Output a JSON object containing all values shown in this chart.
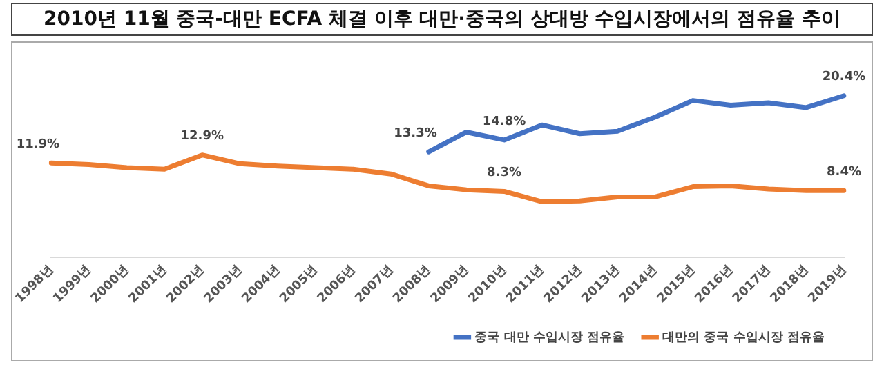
{
  "chart_data": {
    "type": "line",
    "title": "2010년 11월 중국-대만 ECFA 체결 이후 대만·중국의 상대방 수입시장에서의 점유율 추이",
    "categories": [
      "1998년",
      "1999년",
      "2000년",
      "2001년",
      "2002년",
      "2003년",
      "2004년",
      "2005년",
      "2006년",
      "2007년",
      "2008년",
      "2009년",
      "2010년",
      "2011년",
      "2012년",
      "2013년",
      "2014년",
      "2015년",
      "2016년",
      "2017년",
      "2018년",
      "2019년"
    ],
    "series": [
      {
        "name": "중국 대만 수입시장 점유율",
        "color": "#4472c4",
        "values": [
          null,
          null,
          null,
          null,
          null,
          null,
          null,
          null,
          null,
          null,
          13.3,
          15.8,
          14.8,
          16.7,
          15.6,
          15.9,
          17.7,
          19.8,
          19.2,
          19.5,
          18.9,
          20.4
        ],
        "value_labels": [
          null,
          null,
          null,
          null,
          null,
          null,
          null,
          null,
          null,
          null,
          "13.3%",
          null,
          "14.8%",
          null,
          null,
          null,
          null,
          null,
          null,
          null,
          null,
          "20.4%"
        ]
      },
      {
        "name": "대만의 중국 수입시장 점유율",
        "color": "#ed7d31",
        "values": [
          11.9,
          11.7,
          11.3,
          11.1,
          12.9,
          11.8,
          11.5,
          11.3,
          11.1,
          10.5,
          9.0,
          8.5,
          8.3,
          7.0,
          7.1,
          7.6,
          7.6,
          8.9,
          9.0,
          8.6,
          8.4,
          8.4
        ],
        "value_labels": [
          "11.9%",
          null,
          null,
          null,
          "12.9%",
          null,
          null,
          null,
          null,
          null,
          null,
          null,
          "8.3%",
          null,
          null,
          null,
          null,
          null,
          null,
          null,
          null,
          "8.4%"
        ]
      }
    ],
    "tick_labels": "x",
    "grid": false,
    "legend": "bottom right",
    "marker": "none",
    "line_style": "solid"
  }
}
